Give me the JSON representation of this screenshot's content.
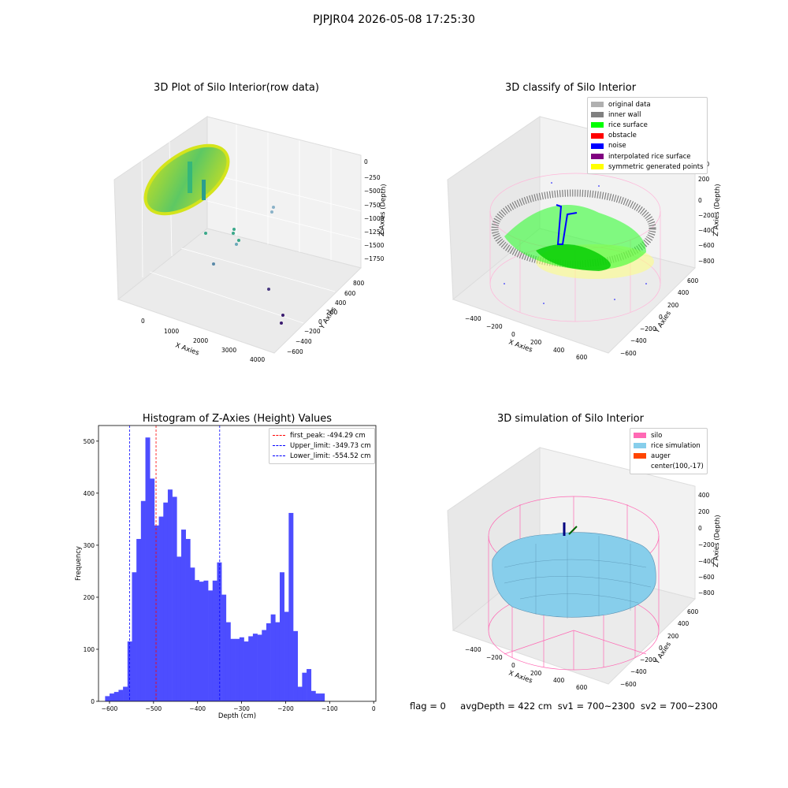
{
  "figure": {
    "suptitle": "PJPJR04 2026-05-08 17:25:30",
    "footer": {
      "flag": "flag = 0",
      "avg": "avgDepth = 422 cm",
      "sv1": "sv1 = 700~2300",
      "sv2": "sv2 = 700~2300"
    }
  },
  "colors": {
    "original_data": "#b0b0b0",
    "inner_wall": "#808080",
    "rice_surface": "#00ff00",
    "obstacle": "#ff0000",
    "noise": "#0000ff",
    "interpolated_rice_surface": "#800080",
    "symmetric_generated_points": "#ffff00",
    "silo": "#ff69b4",
    "rice_simulation": "#87ceeb",
    "auger": "#ff4500",
    "histogram_bar": "#4d4dff"
  },
  "chart_data": [
    {
      "type": "scatter",
      "projection": "3d",
      "title": "3D Plot of Silo Interior(row data)",
      "xlabel": "X Axies",
      "ylabel": "Y Axies",
      "zlabel": "Z Axies (Depth)",
      "x_ticks": [
        "0",
        "1000",
        "2000",
        "3000",
        "4000"
      ],
      "y_ticks": [
        "800",
        "600",
        "400",
        "200",
        "0",
        "−200",
        "−400",
        "−600"
      ],
      "z_ticks": [
        "0",
        "−250",
        "−500",
        "−750",
        "−1000",
        "−1250",
        "−1500",
        "−1750"
      ],
      "colormap": "viridis",
      "outlier_points": [
        {
          "x": 2350,
          "y": 500,
          "z": -750
        },
        {
          "x": 2300,
          "y": 450,
          "z": -850
        },
        {
          "x": 900,
          "y": 100,
          "z": -1250
        },
        {
          "x": 1300,
          "y": 100,
          "z": -1200
        },
        {
          "x": 1350,
          "y": 150,
          "z": -1150
        },
        {
          "x": 1500,
          "y": 100,
          "z": -1300
        },
        {
          "x": 1450,
          "y": 50,
          "z": -1350
        },
        {
          "x": 1300,
          "y": -200,
          "z": -1500
        },
        {
          "x": 3000,
          "y": -300,
          "z": -1600
        },
        {
          "x": 3700,
          "y": -550,
          "z": -1650
        },
        {
          "x": 3650,
          "y": -600,
          "z": -1750
        }
      ]
    },
    {
      "type": "scatter",
      "projection": "3d",
      "title": "3D classify of Silo Interior",
      "xlabel": "X Axies",
      "ylabel": "Y Axies",
      "zlabel": "Z Axies (Depth)",
      "x_ticks": [
        "−400",
        "−200",
        "0",
        "200",
        "400",
        "600"
      ],
      "y_ticks": [
        "600",
        "400",
        "200",
        "0",
        "−200",
        "−400",
        "−600"
      ],
      "z_ticks": [
        "200",
        "0",
        "−200",
        "−400",
        "−600",
        "−800"
      ],
      "legend": [
        "original data",
        "inner wall",
        "rice surface",
        "obstacle",
        "noise",
        "interpolated rice surface",
        "symmetric generated points"
      ]
    },
    {
      "type": "bar",
      "title": "Histogram of Z-Axies (Height) Values",
      "xlabel": "Depth (cm)",
      "ylabel": "Frequency",
      "xlim": [
        -625,
        5
      ],
      "ylim": [
        0,
        530
      ],
      "x_ticks": [
        -600,
        -500,
        -400,
        -300,
        -200,
        -100,
        0
      ],
      "x_tick_labels": [
        "−600",
        "−500",
        "−400",
        "−300",
        "−200",
        "−100",
        "0"
      ],
      "y_ticks": [
        0,
        100,
        200,
        300,
        400,
        500
      ],
      "bin_start": -610,
      "bin_width": 10.17,
      "values": [
        10,
        15,
        18,
        22,
        28,
        115,
        248,
        312,
        385,
        507,
        428,
        338,
        355,
        382,
        407,
        393,
        278,
        330,
        312,
        257,
        233,
        230,
        232,
        213,
        232,
        267,
        205,
        152,
        120,
        120,
        123,
        115,
        125,
        130,
        128,
        137,
        150,
        167,
        152,
        248,
        172,
        362,
        135,
        28,
        55,
        62,
        20,
        15,
        15
      ],
      "vlines": [
        {
          "label": "first_peak: -494.29 cm",
          "x": -494.29,
          "color": "#ff0000"
        },
        {
          "label": "Upper_limit: -349.73 cm",
          "x": -349.73,
          "color": "#0000ff"
        },
        {
          "label": "Lower_limit: -554.52 cm",
          "x": -554.52,
          "color": "#0000ff"
        }
      ]
    },
    {
      "type": "surface",
      "projection": "3d",
      "title": "3D simulation of Silo Interior",
      "xlabel": "X Axies",
      "ylabel": "Y Axies",
      "zlabel": "Z Axies (Depth)",
      "x_ticks": [
        "−400",
        "−200",
        "0",
        "200",
        "400",
        "600"
      ],
      "y_ticks": [
        "600",
        "400",
        "200",
        "0",
        "−200",
        "−400",
        "−600"
      ],
      "z_ticks": [
        "400",
        "200",
        "0",
        "−200",
        "−400",
        "−600",
        "−800"
      ],
      "legend": [
        "silo",
        "rice simulation",
        "auger",
        "center(100,-17)"
      ]
    }
  ]
}
